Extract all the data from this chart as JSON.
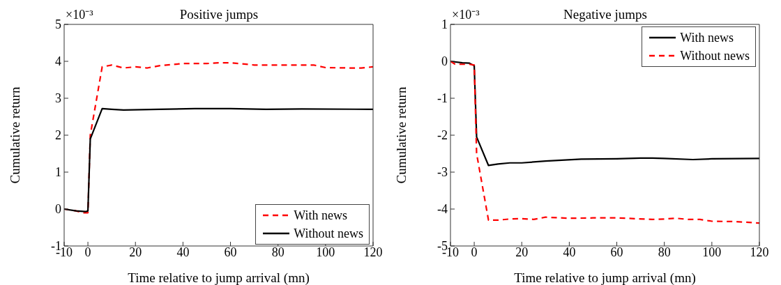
{
  "chart_data": [
    {
      "type": "line",
      "title": "Positive jumps",
      "xlabel": "Time relative to jump arrival (mn)",
      "ylabel": "Cumulative return",
      "annotations": [
        "×10⁻³"
      ],
      "xlim": [
        -10,
        120
      ],
      "xticks": [
        -10,
        0,
        20,
        40,
        60,
        80,
        100,
        120
      ],
      "ylim": [
        -1,
        5
      ],
      "yticks": [
        -1,
        0,
        1,
        2,
        3,
        4,
        5
      ],
      "grid": false,
      "legend": "bottom right",
      "marker": "none",
      "series": [
        {
          "name": "With news",
          "color": "#ff0000",
          "line_style": "dashed",
          "x": [
            -10,
            -5,
            -2,
            0,
            1,
            6,
            10,
            15,
            20,
            25,
            30,
            40,
            50,
            55,
            60,
            70,
            80,
            90,
            95,
            100,
            110,
            115,
            120
          ],
          "values": [
            0,
            -0.05,
            -0.1,
            -0.1,
            2.0,
            3.85,
            3.9,
            3.82,
            3.85,
            3.82,
            3.88,
            3.94,
            3.94,
            3.96,
            3.96,
            3.9,
            3.9,
            3.9,
            3.9,
            3.83,
            3.82,
            3.82,
            3.85
          ]
        },
        {
          "name": "Without news",
          "color": "#000000",
          "line_style": "solid",
          "x": [
            -10,
            -5,
            -1,
            0,
            1,
            6,
            10,
            15,
            30,
            45,
            60,
            75,
            90,
            120
          ],
          "values": [
            0,
            -0.05,
            -0.07,
            -0.05,
            1.9,
            2.72,
            2.7,
            2.68,
            2.7,
            2.72,
            2.72,
            2.7,
            2.71,
            2.7
          ]
        }
      ]
    },
    {
      "type": "line",
      "title": "Negative jumps",
      "xlabel": "Time relative to jump arrival (mn)",
      "ylabel": "Cumulative return",
      "annotations": [
        "×10⁻³"
      ],
      "xlim": [
        -10,
        120
      ],
      "xticks": [
        -10,
        0,
        20,
        40,
        60,
        80,
        100,
        120
      ],
      "ylim": [
        -5,
        1
      ],
      "yticks": [
        -5,
        -4,
        -3,
        -2,
        -1,
        0,
        1
      ],
      "grid": false,
      "legend": "top right",
      "marker": "none",
      "series": [
        {
          "name": "With news",
          "color": "#000000",
          "line_style": "solid",
          "x": [
            -10,
            -5,
            -2,
            0,
            1,
            6,
            10,
            15,
            20,
            30,
            45,
            60,
            70,
            75,
            80,
            92,
            100,
            120
          ],
          "values": [
            0,
            -0.04,
            -0.05,
            -0.12,
            -2.05,
            -2.82,
            -2.78,
            -2.75,
            -2.75,
            -2.7,
            -2.65,
            -2.64,
            -2.62,
            -2.62,
            -2.63,
            -2.66,
            -2.64,
            -2.63
          ]
        },
        {
          "name": "Without news",
          "color": "#ff0000",
          "line_style": "dashed",
          "x": [
            -10,
            -8,
            -2,
            0,
            1,
            6,
            10,
            15,
            20,
            25,
            30,
            40,
            50,
            60,
            75,
            80,
            85,
            90,
            95,
            100,
            110,
            120
          ],
          "values": [
            0,
            -0.08,
            -0.08,
            -0.1,
            -2.5,
            -4.3,
            -4.3,
            -4.27,
            -4.26,
            -4.28,
            -4.22,
            -4.25,
            -4.24,
            -4.24,
            -4.28,
            -4.27,
            -4.25,
            -4.28,
            -4.28,
            -4.33,
            -4.34,
            -4.38
          ]
        }
      ]
    }
  ]
}
